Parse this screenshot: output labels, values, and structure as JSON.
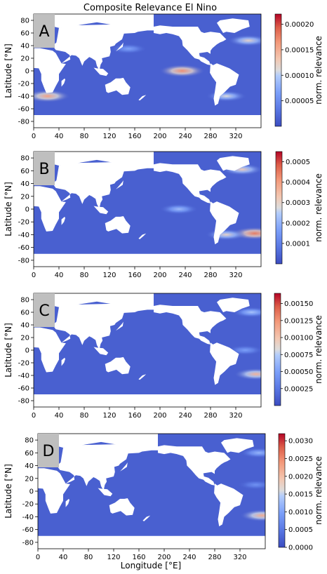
{
  "chart_data": {
    "type": "heatmap",
    "title": "Composite Relevance El Nino",
    "xlabel": "Longitude [°E]",
    "ylabel": "Latitude [°N]",
    "colorbar_label": "norm. relevance",
    "colormap": "coolwarm",
    "colors": {
      "low": "#3b4cc0",
      "mid": "#dddcdc",
      "high": "#b40426",
      "land": "#ffffff"
    },
    "xlim": [
      0,
      360
    ],
    "ylim": [
      -90,
      90
    ],
    "xticks": [
      0,
      40,
      80,
      120,
      160,
      200,
      240,
      280,
      320
    ],
    "yticks": [
      -80,
      -60,
      -40,
      -20,
      0,
      20,
      40,
      60,
      80
    ],
    "panels": [
      {
        "letter": "A",
        "clim": [
          0,
          0.00022
        ],
        "colorbar_ticks": [
          "0.00005",
          "0.00010",
          "0.00015",
          "0.00020"
        ],
        "colorbar_values": [
          5e-05,
          0.0001,
          0.00015,
          0.0002
        ],
        "hotspots": [
          {
            "lon": 235,
            "lat": 0,
            "value": 0.00017
          },
          {
            "lon": 22,
            "lat": -40,
            "value": 0.00016
          },
          {
            "lon": 305,
            "lat": -40,
            "value": 0.00011
          },
          {
            "lon": 340,
            "lat": 48,
            "value": 0.00012
          },
          {
            "lon": 150,
            "lat": 35,
            "value": 7e-05
          }
        ]
      },
      {
        "letter": "B",
        "clim": [
          0,
          0.00055
        ],
        "colorbar_ticks": [
          "0.0001",
          "0.0002",
          "0.0003",
          "0.0004",
          "0.0005"
        ],
        "colorbar_values": [
          0.0001,
          0.0002,
          0.0003,
          0.0004,
          0.0005
        ],
        "hotspots": [
          {
            "lon": 350,
            "lat": -38,
            "value": 0.00045
          },
          {
            "lon": 330,
            "lat": 62,
            "value": 0.00032
          },
          {
            "lon": 230,
            "lat": 0,
            "value": 0.00022
          },
          {
            "lon": 305,
            "lat": -40,
            "value": 0.0003
          }
        ]
      },
      {
        "letter": "C",
        "clim": [
          0,
          0.00165
        ],
        "colorbar_ticks": [
          "0.00025",
          "0.00050",
          "0.00075",
          "0.00100",
          "0.00125",
          "0.00150"
        ],
        "colorbar_values": [
          0.00025,
          0.0005,
          0.00075,
          0.001,
          0.00125,
          0.0015
        ],
        "hotspots": [
          {
            "lon": 352,
            "lat": -38,
            "value": 0.0011
          },
          {
            "lon": 345,
            "lat": 60,
            "value": 0.0007
          },
          {
            "lon": 335,
            "lat": 0,
            "value": 0.0005
          }
        ]
      },
      {
        "letter": "D",
        "clim": [
          0,
          0.0032
        ],
        "colorbar_ticks": [
          "0.0000",
          "0.0005",
          "0.0010",
          "0.0015",
          "0.0020",
          "0.0025",
          "0.0030"
        ],
        "colorbar_values": [
          0.0,
          0.0005,
          0.001,
          0.0015,
          0.002,
          0.0025,
          0.003
        ],
        "hotspots": [
          {
            "lon": 355,
            "lat": -38,
            "value": 0.0022
          },
          {
            "lon": 350,
            "lat": 60,
            "value": 0.0012
          },
          {
            "lon": 345,
            "lat": 10,
            "value": 0.0008
          }
        ]
      }
    ]
  }
}
